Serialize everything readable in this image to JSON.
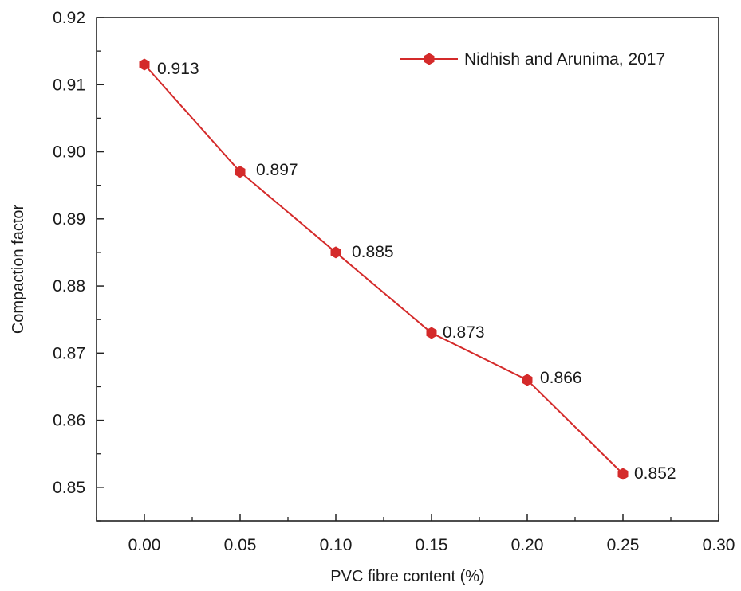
{
  "chart_data": {
    "type": "line",
    "xlabel": "PVC fibre content (%)",
    "ylabel": "Compaction factor",
    "xlim": [
      -0.025,
      0.3
    ],
    "ylim": [
      0.845,
      0.92
    ],
    "xticks": [
      "0.00",
      "0.05",
      "0.10",
      "0.15",
      "0.20",
      "0.25",
      "0.30"
    ],
    "yticks": [
      "0.85",
      "0.86",
      "0.87",
      "0.88",
      "0.89",
      "0.90",
      "0.91",
      "0.92"
    ],
    "grid": false,
    "legend_position": "top-right",
    "series": [
      {
        "name": "Nidhish and Arunima, 2017",
        "color": "#d42a2a",
        "marker": "hexagon",
        "x": [
          0.0,
          0.05,
          0.1,
          0.15,
          0.2,
          0.25
        ],
        "y": [
          0.913,
          0.897,
          0.885,
          0.873,
          0.866,
          0.852
        ],
        "labels": [
          "0.913",
          "0.897",
          "0.885",
          "0.873",
          "0.866",
          "0.852"
        ]
      }
    ]
  }
}
